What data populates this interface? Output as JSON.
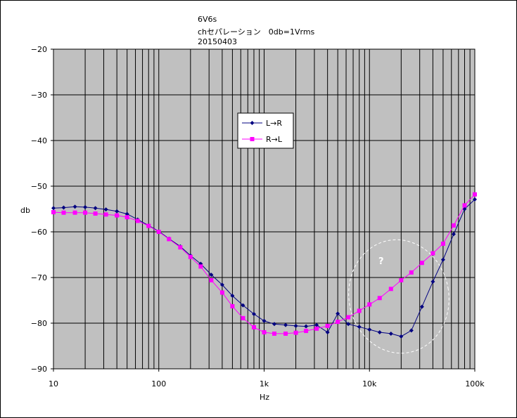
{
  "chart_data": {
    "type": "line",
    "title_lines": [
      "6V6s",
      "chセパレーション　0db=1Vrms",
      "20150403"
    ],
    "xlabel": "Hz",
    "ylabel": "db",
    "x_scale": "log",
    "xlim": [
      10,
      100000
    ],
    "ylim": [
      -90,
      -20
    ],
    "x_tick_labels": [
      "10",
      "100",
      "1k",
      "10k",
      "100k"
    ],
    "y_ticks": [
      -20,
      -30,
      -40,
      -50,
      -60,
      -70,
      -80,
      -90
    ],
    "grid": true,
    "legend_position": "upper-center",
    "annotation": "?",
    "plot_background": "#c0c0c0",
    "series": [
      {
        "name": "L→R",
        "color": "#000080",
        "marker": "diamond",
        "x": [
          10,
          12.5,
          16,
          20,
          25,
          31.5,
          40,
          50,
          63,
          80,
          100,
          125,
          160,
          200,
          250,
          315,
          400,
          500,
          630,
          800,
          1000,
          1250,
          1600,
          2000,
          2500,
          3150,
          4000,
          5000,
          6300,
          8000,
          10000,
          12500,
          16000,
          20000,
          25000,
          31500,
          40000,
          50000,
          63000,
          80000,
          100000
        ],
        "y": [
          -54.8,
          -54.7,
          -54.5,
          -54.6,
          -54.8,
          -55.1,
          -55.5,
          -56.1,
          -57.3,
          -58.6,
          -59.9,
          -61.5,
          -63.2,
          -65.2,
          -67.0,
          -69.4,
          -71.6,
          -74.0,
          -76.1,
          -78.0,
          -79.5,
          -80.2,
          -80.4,
          -80.6,
          -80.7,
          -80.4,
          -82.0,
          -77.9,
          -80.2,
          -80.8,
          -81.4,
          -82.0,
          -82.3,
          -82.9,
          -81.6,
          -76.4,
          -70.9,
          -66.1,
          -60.5,
          -55.0,
          -52.9
        ]
      },
      {
        "name": "R→L",
        "color": "#ff00ff",
        "marker": "square",
        "x": [
          10,
          12.5,
          16,
          20,
          25,
          31.5,
          40,
          50,
          63,
          80,
          100,
          125,
          160,
          200,
          250,
          315,
          400,
          500,
          630,
          800,
          1000,
          1250,
          1600,
          2000,
          2500,
          3150,
          4000,
          5000,
          6300,
          8000,
          10000,
          12500,
          16000,
          20000,
          25000,
          31500,
          40000,
          50000,
          63000,
          80000,
          100000
        ],
        "y": [
          -55.7,
          -55.8,
          -55.8,
          -55.8,
          -56.0,
          -56.2,
          -56.4,
          -56.8,
          -57.6,
          -58.7,
          -60.0,
          -61.6,
          -63.4,
          -65.5,
          -67.6,
          -70.6,
          -73.3,
          -76.3,
          -78.9,
          -80.9,
          -82.0,
          -82.3,
          -82.3,
          -82.1,
          -81.7,
          -81.2,
          -80.6,
          -79.7,
          -78.7,
          -77.3,
          -75.9,
          -74.5,
          -72.5,
          -70.6,
          -68.9,
          -66.8,
          -64.7,
          -62.6,
          -58.6,
          -54.2,
          -51.8
        ]
      }
    ]
  }
}
